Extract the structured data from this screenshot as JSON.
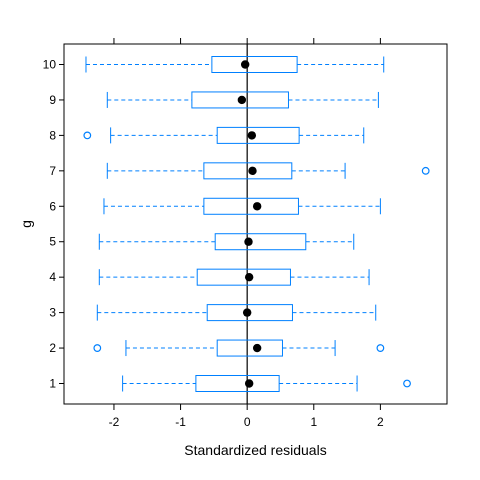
{
  "chart_data": {
    "type": "boxplot",
    "title": "",
    "xlabel": "Standardized residuals",
    "ylabel": "g",
    "xlim": [
      -2.75,
      3.0
    ],
    "x_ticks": [
      "-2",
      "-1",
      "0",
      "1",
      "2"
    ],
    "x_tick_values": [
      -2,
      -1,
      0,
      1,
      2
    ],
    "reference_line_x": 0,
    "colors": {
      "box": "#0080ff",
      "median": "#000000",
      "reference_line": "#000000",
      "frame": "#000000"
    },
    "groups": [
      {
        "label": "1",
        "whisker_low": -1.87,
        "q1": -0.77,
        "median": 0.03,
        "q3": 0.48,
        "whisker_high": 1.65,
        "outliers": [
          2.4
        ]
      },
      {
        "label": "2",
        "whisker_low": -1.82,
        "q1": -0.45,
        "median": 0.15,
        "q3": 0.53,
        "whisker_high": 1.32,
        "outliers": [
          -2.25,
          2.0
        ]
      },
      {
        "label": "3",
        "whisker_low": -2.25,
        "q1": -0.6,
        "median": 0.0,
        "q3": 0.68,
        "whisker_high": 1.93,
        "outliers": []
      },
      {
        "label": "4",
        "whisker_low": -2.22,
        "q1": -0.75,
        "median": 0.03,
        "q3": 0.65,
        "whisker_high": 1.83,
        "outliers": []
      },
      {
        "label": "5",
        "whisker_low": -2.22,
        "q1": -0.48,
        "median": 0.02,
        "q3": 0.88,
        "whisker_high": 1.6,
        "outliers": []
      },
      {
        "label": "6",
        "whisker_low": -2.15,
        "q1": -0.65,
        "median": 0.15,
        "q3": 0.77,
        "whisker_high": 2.0,
        "outliers": []
      },
      {
        "label": "7",
        "whisker_low": -2.1,
        "q1": -0.65,
        "median": 0.08,
        "q3": 0.67,
        "whisker_high": 1.47,
        "outliers": [
          2.68
        ]
      },
      {
        "label": "8",
        "whisker_low": -2.05,
        "q1": -0.45,
        "median": 0.07,
        "q3": 0.78,
        "whisker_high": 1.75,
        "outliers": [
          -2.4
        ]
      },
      {
        "label": "9",
        "whisker_low": -2.1,
        "q1": -0.83,
        "median": -0.08,
        "q3": 0.62,
        "whisker_high": 1.97,
        "outliers": []
      },
      {
        "label": "10",
        "whisker_low": -2.42,
        "q1": -0.53,
        "median": -0.03,
        "q3": 0.75,
        "whisker_high": 2.05,
        "outliers": []
      }
    ]
  }
}
